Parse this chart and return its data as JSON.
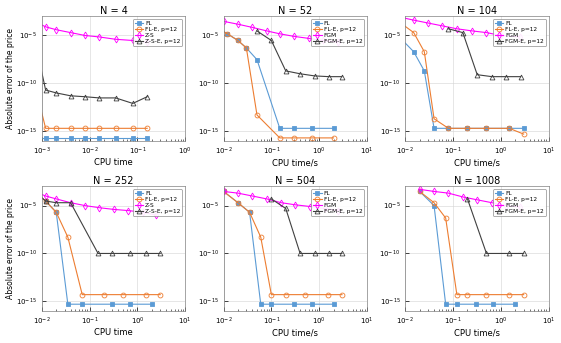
{
  "panels": [
    {
      "title": "N = 4",
      "xlabel": "CPU time",
      "legends": [
        "FL",
        "FL-E, p=12",
        "Z-S",
        "Z-S-E, p=12"
      ],
      "colors": [
        "#5B9BD5",
        "#ED7D31",
        "#FF00FF",
        "#404040"
      ],
      "markers": [
        "s",
        "o",
        "d",
        "^"
      ],
      "mfc": [
        "#5B9BD5",
        "none",
        "none",
        "none"
      ],
      "xlim_log": [
        -3,
        0
      ],
      "ylim_log": [
        -16,
        -3
      ],
      "xticks": [
        -3,
        -2,
        -1,
        0
      ],
      "yticks": [
        -5,
        -10,
        -15
      ],
      "series": [
        {
          "x": [
            0.0007,
            0.0012,
            0.002,
            0.004,
            0.008,
            0.016,
            0.035,
            0.08,
            0.16
          ],
          "y": [
            2e-16,
            2e-16,
            2e-16,
            2e-16,
            2e-16,
            2e-16,
            2e-16,
            2e-16,
            2e-16
          ]
        },
        {
          "x": [
            0.0007,
            0.0012,
            0.002,
            0.004,
            0.008,
            0.016,
            0.035,
            0.08,
            0.16
          ],
          "y": [
            1e-10,
            2e-15,
            2e-15,
            2e-15,
            2e-15,
            2e-15,
            2e-15,
            2e-15,
            2e-15
          ]
        },
        {
          "x": [
            0.0007,
            0.0012,
            0.002,
            0.004,
            0.008,
            0.016,
            0.035,
            0.08,
            0.16
          ],
          "y": [
            0.0003,
            8e-05,
            4e-05,
            2e-05,
            1e-05,
            7e-06,
            4e-06,
            3e-06,
            2e-06
          ]
        },
        {
          "x": [
            0.0007,
            0.0012,
            0.002,
            0.004,
            0.008,
            0.016,
            0.035,
            0.08,
            0.16
          ],
          "y": [
            5e-06,
            2e-11,
            1e-11,
            5e-12,
            4e-12,
            3e-12,
            3e-12,
            8e-13,
            4e-12
          ]
        }
      ]
    },
    {
      "title": "N = 52",
      "xlabel": "CPU time/s",
      "legends": [
        "FL",
        "FL-E, p=12",
        "FGM",
        "FGM-E, p=12"
      ],
      "colors": [
        "#5B9BD5",
        "#ED7D31",
        "#FF00FF",
        "#404040"
      ],
      "markers": [
        "s",
        "o",
        "d",
        "^"
      ],
      "mfc": [
        "#5B9BD5",
        "none",
        "none",
        "none"
      ],
      "xlim_log": [
        -2,
        1
      ],
      "ylim_log": [
        -16,
        -3
      ],
      "xticks": [
        -2,
        -1,
        0,
        1
      ],
      "yticks": [
        -5,
        -10,
        -15
      ],
      "series": [
        {
          "x": [
            0.005,
            0.008,
            0.012,
            0.02,
            0.03,
            0.05,
            0.15,
            0.3,
            0.7,
            2.0
          ],
          "y": [
            0.0002,
            5e-05,
            1.5e-05,
            3e-06,
            5e-07,
            3e-08,
            2e-15,
            2e-15,
            2e-15,
            2e-15
          ]
        },
        {
          "x": [
            0.005,
            0.008,
            0.012,
            0.02,
            0.03,
            0.05,
            0.15,
            0.3,
            0.7,
            2.0
          ],
          "y": [
            0.0002,
            5e-05,
            1.5e-05,
            3e-06,
            5e-07,
            5e-14,
            2e-16,
            2e-16,
            2e-16,
            2e-16
          ]
        },
        {
          "x": [
            0.005,
            0.01,
            0.02,
            0.04,
            0.08,
            0.15,
            0.3,
            0.6,
            1.2,
            2.5
          ],
          "y": [
            0.0008,
            0.0003,
            0.00015,
            7e-05,
            3e-05,
            1.5e-05,
            8e-06,
            5e-06,
            3e-06,
            2e-06
          ]
        },
        {
          "x": [
            0.05,
            0.1,
            0.2,
            0.4,
            0.8,
            1.6,
            3.0
          ],
          "y": [
            3e-05,
            3e-06,
            2e-09,
            1e-09,
            6e-10,
            5e-10,
            5e-10
          ]
        }
      ]
    },
    {
      "title": "N = 104",
      "xlabel": "CPU time/s",
      "legends": [
        "FL",
        "FL-E, p=12",
        "FGM",
        "FGM-E, p=12"
      ],
      "colors": [
        "#5B9BD5",
        "#ED7D31",
        "#FF00FF",
        "#404040"
      ],
      "markers": [
        "s",
        "o",
        "d",
        "^"
      ],
      "mfc": [
        "#5B9BD5",
        "none",
        "none",
        "none"
      ],
      "xlim_log": [
        -2,
        1
      ],
      "ylim_log": [
        -16,
        -3
      ],
      "xticks": [
        -2,
        -1,
        0,
        1
      ],
      "yticks": [
        -5,
        -10,
        -15
      ],
      "series": [
        {
          "x": [
            0.008,
            0.015,
            0.025,
            0.04,
            0.08,
            0.2,
            0.5,
            1.5,
            3.0
          ],
          "y": [
            5e-06,
            2e-07,
            2e-09,
            2e-15,
            2e-15,
            2e-15,
            2e-15,
            2e-15,
            2e-15
          ]
        },
        {
          "x": [
            0.008,
            0.015,
            0.025,
            0.04,
            0.08,
            0.2,
            0.5,
            1.5,
            3.0
          ],
          "y": [
            0.0002,
            2e-05,
            2e-07,
            2e-14,
            2e-15,
            2e-15,
            2e-15,
            2e-15,
            5e-16
          ]
        },
        {
          "x": [
            0.008,
            0.015,
            0.03,
            0.06,
            0.12,
            0.25,
            0.5,
            1.0,
            2.5
          ],
          "y": [
            0.0008,
            0.0004,
            0.0002,
            0.0001,
            5e-05,
            3e-05,
            2e-05,
            1e-05,
            7e-06
          ]
        },
        {
          "x": [
            0.08,
            0.16,
            0.32,
            0.65,
            1.3,
            2.6
          ],
          "y": [
            5e-05,
            2e-05,
            8e-10,
            5e-10,
            5e-10,
            5e-10
          ]
        }
      ]
    },
    {
      "title": "N = 252",
      "xlabel": "CPU time",
      "legends": [
        "FL",
        "FL-E, p=12",
        "Z-S",
        "Z-S-E, p=12"
      ],
      "colors": [
        "#5B9BD5",
        "#ED7D31",
        "#FF00FF",
        "#404040"
      ],
      "markers": [
        "s",
        "o",
        "d",
        "^"
      ],
      "mfc": [
        "#5B9BD5",
        "none",
        "none",
        "none"
      ],
      "xlim_log": [
        -2,
        1
      ],
      "ylim_log": [
        -16,
        -3
      ],
      "xticks": [
        -2,
        -1,
        0,
        1
      ],
      "yticks": [
        -5,
        -10,
        -15
      ],
      "series": [
        {
          "x": [
            0.007,
            0.012,
            0.02,
            0.035,
            0.07,
            0.3,
            0.7,
            2.0
          ],
          "y": [
            0.0003,
            3e-05,
            2e-06,
            5e-16,
            5e-16,
            5e-16,
            5e-16,
            5e-16
          ]
        },
        {
          "x": [
            0.007,
            0.012,
            0.02,
            0.035,
            0.07,
            0.2,
            0.5,
            1.5,
            3.0
          ],
          "y": [
            0.0003,
            3e-05,
            2e-06,
            5e-09,
            5e-15,
            5e-15,
            5e-15,
            5e-15,
            5e-15
          ]
        },
        {
          "x": [
            0.007,
            0.012,
            0.02,
            0.04,
            0.08,
            0.16,
            0.32,
            0.65,
            1.3,
            2.5
          ],
          "y": [
            0.0003,
            0.0001,
            5e-05,
            2e-05,
            1e-05,
            6e-06,
            4e-06,
            3e-06,
            2e-06,
            1e-06
          ]
        },
        {
          "x": [
            0.007,
            0.012,
            0.02,
            0.04,
            0.15,
            0.3,
            0.7,
            1.5,
            3.0
          ],
          "y": [
            0.0003,
            3e-05,
            2e-05,
            2e-05,
            1e-10,
            1e-10,
            1e-10,
            1e-10,
            1e-10
          ]
        }
      ]
    },
    {
      "title": "N = 504",
      "xlabel": "CPU time/s",
      "legends": [
        "FL",
        "FL-E, p=12",
        "FGM",
        "FGM-E, p=12"
      ],
      "colors": [
        "#5B9BD5",
        "#ED7D31",
        "#FF00FF",
        "#404040"
      ],
      "markers": [
        "s",
        "o",
        "d",
        "^"
      ],
      "mfc": [
        "#5B9BD5",
        "none",
        "none",
        "none"
      ],
      "xlim_log": [
        -2,
        1
      ],
      "ylim_log": [
        -16,
        -3
      ],
      "xticks": [
        -2,
        -1,
        0,
        1
      ],
      "yticks": [
        -5,
        -10,
        -15
      ],
      "series": [
        {
          "x": [
            0.01,
            0.02,
            0.035,
            0.06,
            0.1,
            0.3,
            0.7,
            2.0
          ],
          "y": [
            0.0003,
            2e-05,
            2e-06,
            5e-16,
            5e-16,
            5e-16,
            5e-16,
            5e-16
          ]
        },
        {
          "x": [
            0.01,
            0.02,
            0.035,
            0.06,
            0.1,
            0.2,
            0.5,
            1.5,
            3.0
          ],
          "y": [
            0.0003,
            2e-05,
            2e-06,
            5e-09,
            5e-15,
            5e-15,
            5e-15,
            5e-15,
            5e-15
          ]
        },
        {
          "x": [
            0.01,
            0.02,
            0.04,
            0.08,
            0.16,
            0.32,
            0.65,
            1.3,
            2.5
          ],
          "y": [
            0.0003,
            0.0002,
            0.0001,
            5e-05,
            2e-05,
            1.2e-05,
            8e-06,
            5e-06,
            3e-06
          ]
        },
        {
          "x": [
            0.1,
            0.2,
            0.4,
            0.8,
            1.6,
            3.0
          ],
          "y": [
            5e-05,
            5e-06,
            1e-10,
            1e-10,
            1e-10,
            1e-10
          ]
        }
      ]
    },
    {
      "title": "N = 1008",
      "xlabel": "CPU time/s",
      "legends": [
        "FL",
        "FL-E, p=12",
        "FGM",
        "FGM-E, p=12"
      ],
      "colors": [
        "#5B9BD5",
        "#ED7D31",
        "#FF00FF",
        "#404040"
      ],
      "markers": [
        "s",
        "o",
        "d",
        "^"
      ],
      "mfc": [
        "#5B9BD5",
        "none",
        "none",
        "none"
      ],
      "xlim_log": [
        -2,
        1
      ],
      "ylim_log": [
        -16,
        -3
      ],
      "xticks": [
        -2,
        -1,
        0,
        1
      ],
      "yticks": [
        -5,
        -10,
        -15
      ],
      "series": [
        {
          "x": [
            0.02,
            0.04,
            0.07,
            0.12,
            0.3,
            0.7,
            2.0
          ],
          "y": [
            0.0003,
            1e-05,
            5e-16,
            5e-16,
            5e-16,
            5e-16,
            5e-16
          ]
        },
        {
          "x": [
            0.02,
            0.04,
            0.07,
            0.12,
            0.2,
            0.5,
            1.5,
            3.0
          ],
          "y": [
            0.0003,
            2e-05,
            5e-07,
            5e-15,
            5e-15,
            5e-15,
            5e-15,
            5e-15
          ]
        },
        {
          "x": [
            0.02,
            0.04,
            0.08,
            0.16,
            0.32,
            0.65,
            1.3,
            2.5
          ],
          "y": [
            0.0005,
            0.0003,
            0.0002,
            8e-05,
            4e-05,
            2e-05,
            1e-05,
            7e-06
          ]
        },
        {
          "x": [
            0.2,
            0.5,
            1.5,
            3.0
          ],
          "y": [
            5e-05,
            1e-10,
            1e-10,
            1e-10
          ]
        }
      ]
    }
  ],
  "ylabel": "Absolute error of the price",
  "figure_bgcolor": "#FFFFFF",
  "axes_bgcolor": "#FFFFFF",
  "linewidth": 0.8,
  "markersize": 3.5
}
